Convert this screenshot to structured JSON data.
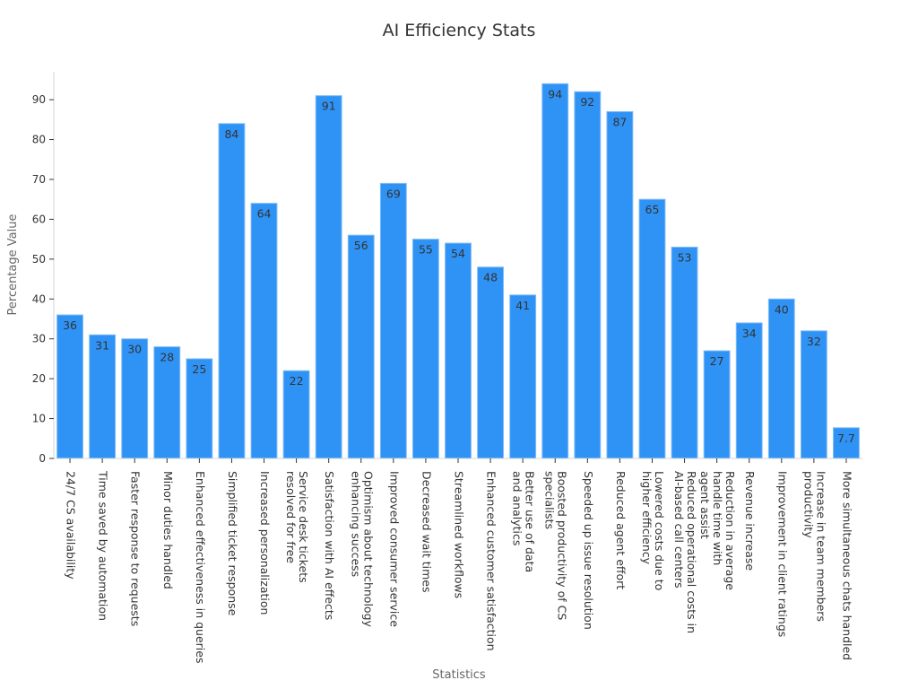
{
  "chart_data": {
    "type": "bar",
    "title": "AI Efficiency Stats",
    "xlabel": "Statistics",
    "ylabel": "Percentage Value",
    "ylim": [
      0,
      97
    ],
    "yticks": [
      0,
      10,
      20,
      30,
      40,
      50,
      60,
      70,
      80,
      90
    ],
    "grid": false,
    "bar_color": "#2f93f6",
    "bar_edge_color": "#7fbcf8",
    "label_color": "#333333",
    "axis_color": "#cfd5dc",
    "categories": [
      [
        "24/7 CS availability"
      ],
      [
        "Time saved by automation"
      ],
      [
        "Faster response to requests"
      ],
      [
        "Minor duties handled"
      ],
      [
        "Enhanced effectiveness in queries"
      ],
      [
        "Simplified ticket response"
      ],
      [
        "Increased personalization"
      ],
      [
        "Service desk tickets",
        "resolved for free"
      ],
      [
        "Satisfaction with AI effects"
      ],
      [
        "Optimism about technology",
        "enhancing success"
      ],
      [
        "Improved consumer service"
      ],
      [
        "Decreased wait times"
      ],
      [
        "Streamlined workflows"
      ],
      [
        "Enhanced customer satisfaction"
      ],
      [
        "Better use of data",
        "and analytics"
      ],
      [
        "Boosted productivity of CS",
        "specialists"
      ],
      [
        "Speeded up issue resolution"
      ],
      [
        "Reduced agent effort"
      ],
      [
        "Lowered costs due to",
        "higher efficiency"
      ],
      [
        "Reduced operational costs in",
        "AI-based call centers"
      ],
      [
        "Reduction in average",
        "handle time with",
        "agent assist"
      ],
      [
        "Revenue increase"
      ],
      [
        "Improvement in client ratings"
      ],
      [
        "Increase in team members",
        "productivity"
      ],
      [
        "More simultaneous chats handled"
      ]
    ],
    "values": [
      36,
      31,
      30,
      28,
      25,
      84,
      64,
      22,
      91,
      56,
      69,
      55,
      54,
      48,
      41,
      94,
      92,
      87,
      65,
      53,
      27,
      34,
      40,
      32,
      7.7
    ],
    "value_labels": [
      "36",
      "31",
      "30",
      "28",
      "25",
      "84",
      "64",
      "22",
      "91",
      "56",
      "69",
      "55",
      "54",
      "48",
      "41",
      "94",
      "92",
      "87",
      "65",
      "53",
      "27",
      "34",
      "40",
      "32",
      "7.7"
    ]
  }
}
